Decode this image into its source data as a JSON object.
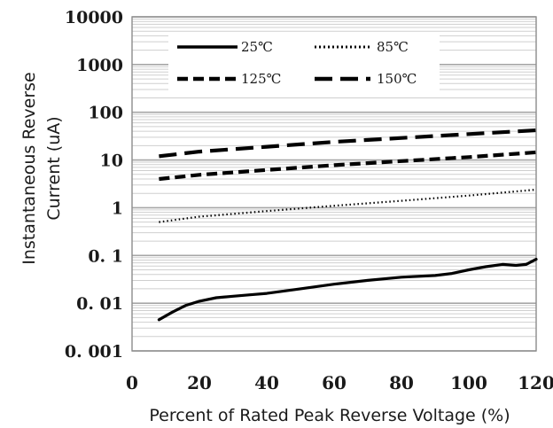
{
  "chart_data": {
    "type": "line",
    "title": "",
    "xlabel": "Percent of  Rated Peak Reverse Voltage (%)",
    "ylabel_lines": [
      "Instantaneous Reverse",
      "Current (uA)"
    ],
    "x_scale": "linear",
    "y_scale": "log",
    "xlim": [
      0,
      120
    ],
    "ylim": [
      0.001,
      10000
    ],
    "x_ticks": [
      0,
      20,
      40,
      60,
      80,
      100,
      120
    ],
    "x_tick_labels": [
      "0",
      "20",
      "40",
      "60",
      "80",
      "100",
      "120"
    ],
    "y_ticks": [
      0.001,
      0.01,
      0.1,
      1,
      10,
      100,
      1000,
      10000
    ],
    "y_tick_labels": [
      "0. 001",
      "0. 01",
      "0. 1",
      "1",
      "10",
      "100",
      "1000",
      "10000"
    ],
    "grid": true,
    "legend_position": "top",
    "series": [
      {
        "name": "25℃",
        "style": "solid",
        "color": "#000000",
        "x": [
          8,
          12,
          16,
          20,
          25,
          30,
          35,
          40,
          50,
          60,
          70,
          80,
          90,
          95,
          100,
          105,
          110,
          114,
          117,
          120
        ],
        "y": [
          0.0045,
          0.0065,
          0.009,
          0.011,
          0.013,
          0.014,
          0.015,
          0.016,
          0.02,
          0.025,
          0.03,
          0.035,
          0.038,
          0.042,
          0.05,
          0.058,
          0.065,
          0.062,
          0.065,
          0.083
        ]
      },
      {
        "name": "85℃",
        "style": "dotted",
        "color": "#000000",
        "x": [
          8,
          20,
          40,
          60,
          80,
          100,
          120
        ],
        "y": [
          0.5,
          0.65,
          0.85,
          1.1,
          1.4,
          1.8,
          2.4
        ]
      },
      {
        "name": "125℃",
        "style": "dashed",
        "color": "#000000",
        "x": [
          8,
          20,
          40,
          60,
          80,
          100,
          120
        ],
        "y": [
          4,
          4.9,
          6.2,
          7.8,
          9.5,
          11.5,
          14.5
        ]
      },
      {
        "name": "150℃",
        "style": "long-dashed",
        "color": "#000000",
        "x": [
          8,
          20,
          40,
          60,
          80,
          100,
          120
        ],
        "y": [
          12,
          15,
          19,
          24,
          29,
          35,
          42
        ]
      }
    ]
  }
}
